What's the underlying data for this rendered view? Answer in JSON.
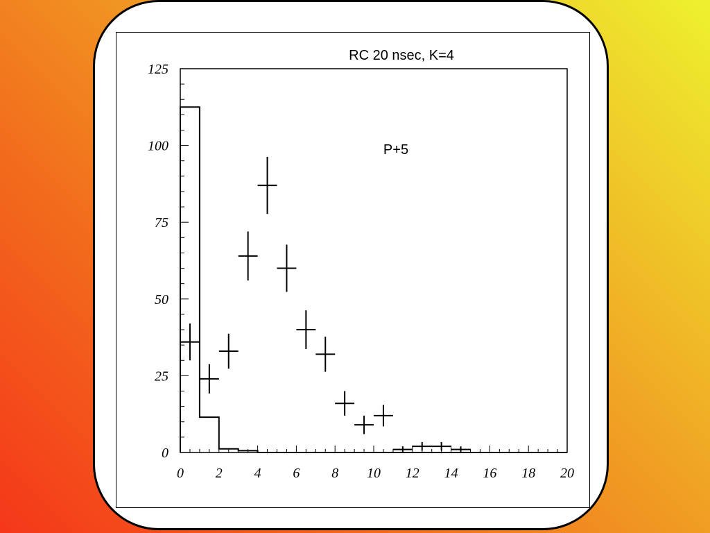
{
  "chart_data": {
    "type": "bar",
    "title": "RC 20 nsec, K=4",
    "annotation": "P+5",
    "xlabel": "",
    "ylabel": "",
    "xlim": [
      0,
      20
    ],
    "ylim": [
      0,
      125
    ],
    "x_ticks": [
      0,
      2,
      4,
      6,
      8,
      10,
      12,
      14,
      16,
      18,
      20
    ],
    "y_ticks": [
      0,
      25,
      50,
      75,
      100,
      125
    ],
    "grid": false,
    "histogram": {
      "name": "",
      "bin_edges": [
        0,
        1,
        2,
        3,
        4,
        5,
        6,
        7,
        8,
        9,
        10,
        11,
        12,
        13,
        14,
        15,
        16,
        17,
        18,
        19,
        20
      ],
      "values": [
        112.5,
        11.5,
        1.2,
        0.6,
        0,
        0,
        0,
        0,
        0,
        0,
        0,
        0,
        0,
        0,
        0,
        0,
        0,
        0,
        0,
        0
      ]
    },
    "points": {
      "name": "",
      "x": [
        0.5,
        1.5,
        2.5,
        3.5,
        4.5,
        5.5,
        6.5,
        7.5,
        8.5,
        9.5,
        10.5,
        11.5,
        12.5,
        13.5,
        14.5
      ],
      "y": [
        36,
        24,
        33,
        64,
        87,
        60,
        40,
        32,
        16,
        9,
        12,
        1,
        2,
        2,
        1
      ],
      "yerr": [
        6,
        4.8,
        5.7,
        8,
        9.3,
        7.7,
        6.3,
        5.7,
        4,
        3,
        3.5,
        1,
        1.4,
        1.4,
        1
      ]
    }
  }
}
